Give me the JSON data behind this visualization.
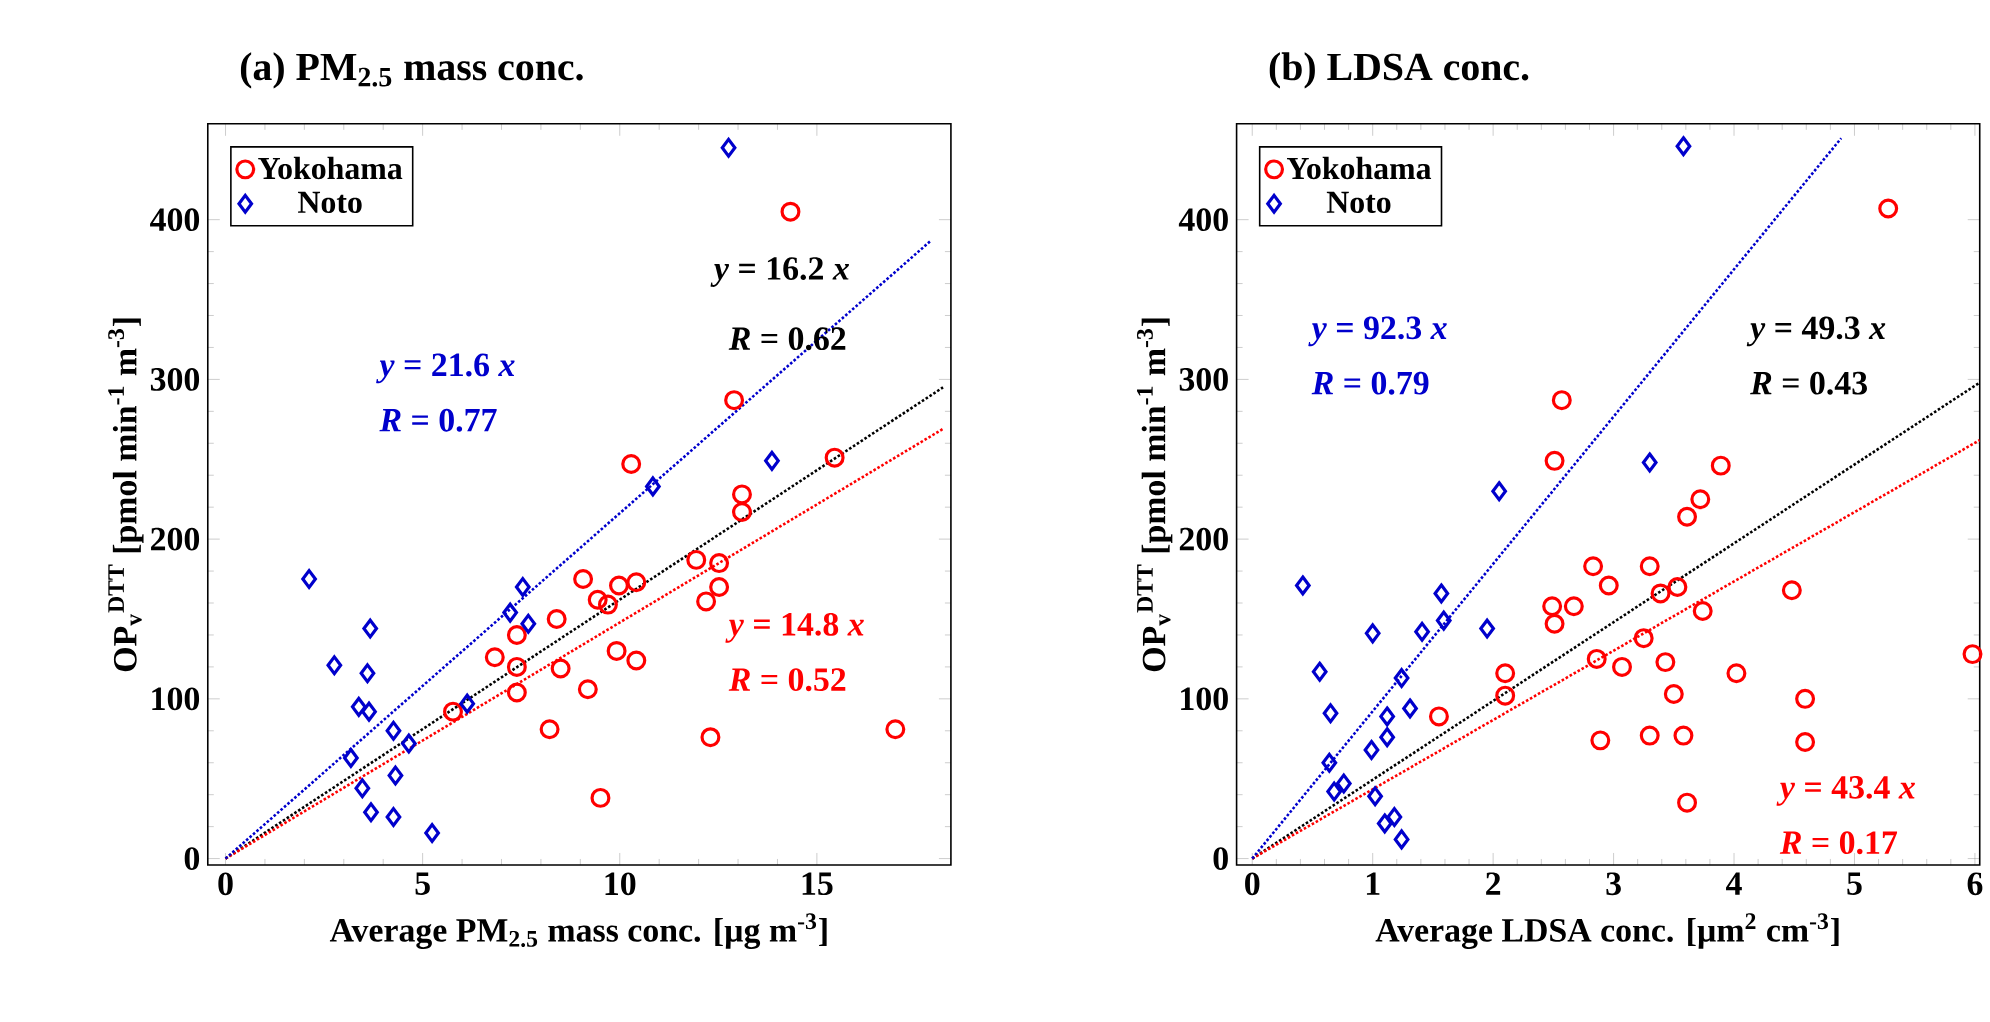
{
  "chart_data": [
    {
      "type": "scatter",
      "title": "(a)  PM$_{2.5}$ mass conc.",
      "xlabel": "Average PM$_{2.5}$ mass conc. [µg m$^{-3}$]",
      "ylabel": "OP$_{v}$$^{DTT}$ [pmol min$^{-1}$ m$^{-3}$]",
      "xlim": [
        -0.45,
        18.4
      ],
      "ylim": [
        -4,
        460
      ],
      "xticks": [
        0,
        5,
        10,
        15
      ],
      "yticks": [
        0,
        100,
        200,
        300,
        400
      ],
      "legend": "top left",
      "series": [
        {
          "name": "Yokohama",
          "color": "#ff0000",
          "marker": "circle",
          "x": [
            14.33,
            12.9,
            10.29,
            13.1,
            13.1,
            15.45,
            9.07,
            9.44,
            9.7,
            9.98,
            10.42,
            11.94,
            12.52,
            12.19,
            12.52,
            8.4,
            7.39,
            6.83,
            7.39,
            7.39,
            8.5,
            9.92,
            10.42,
            9.19,
            5.77,
            8.22,
            12.3,
            16.99,
            9.51
          ],
          "values": [
            405,
            287,
            247,
            228,
            217,
            251,
            175,
            162,
            159,
            171,
            173,
            187,
            185,
            161,
            170,
            150,
            140,
            126,
            120,
            104,
            119,
            130,
            124,
            106,
            92,
            81,
            76,
            81,
            38
          ]
        },
        {
          "name": "Noto",
          "color": "#0000cc",
          "marker": "diamond",
          "x": [
            12.76,
            13.86,
            10.84,
            2.12,
            3.67,
            2.76,
            3.6,
            3.38,
            3.64,
            7.54,
            7.22,
            7.68,
            6.13,
            4.26,
            4.65,
            3.18,
            3.47,
            4.31,
            3.69,
            4.26,
            5.24
          ],
          "values": [
            445,
            249,
            233,
            175,
            144,
            121,
            116,
            95,
            92,
            170,
            154,
            147,
            97,
            80,
            72,
            63,
            44,
            52,
            29,
            26,
            16
          ]
        },
        {
          "type": "line",
          "color": "#000000",
          "marker": "none",
          "line_style": "dotted",
          "x": [
            0,
            18.2
          ],
          "values": [
            0,
            295
          ]
        },
        {
          "type": "line",
          "color": "#ff0000",
          "marker": "none",
          "line_style": "dotted",
          "x": [
            0,
            18.2
          ],
          "values": [
            0,
            269
          ]
        },
        {
          "type": "line",
          "color": "#0000cc",
          "marker": "none",
          "line_style": "dotted",
          "x": [
            0,
            17.9
          ],
          "values": [
            0,
            387
          ]
        }
      ],
      "annotations": [
        "*y* = 16.2 *x*",
        "*R* = 0.62",
        "*y* = 14.8 *x*",
        "*R* = 0.52",
        "*y* = 21.6 *x*",
        "*R* = 0.77"
      ]
    },
    {
      "type": "scatter",
      "title": "(b) LDSA conc.",
      "xlabel": "Average LDSA conc. [µm$^{2}$ cm$^{-3}$]",
      "ylabel": "OP$_{v}$$^{DTT}$ [pmol min$^{-1}$ m$^{-3}$]",
      "xlim": [
        -0.13,
        6.04
      ],
      "ylim": [
        -4,
        460
      ],
      "xticks": [
        0,
        1,
        2,
        3,
        4,
        5,
        6
      ],
      "yticks": [
        0,
        100,
        200,
        300,
        400
      ],
      "legend": "top left",
      "series": [
        {
          "name": "Yokohama",
          "color": "#ff0000",
          "marker": "circle",
          "x": [
            5.28,
            2.57,
            2.51,
            3.89,
            3.72,
            3.61,
            2.83,
            2.96,
            3.3,
            3.53,
            3.39,
            2.49,
            2.67,
            2.51,
            3.74,
            4.48,
            3.25,
            2.86,
            3.07,
            3.43,
            3.5,
            4.02,
            2.1,
            2.1,
            4.59,
            5.98,
            1.55,
            2.89,
            3.3,
            3.58,
            4.59,
            3.61
          ],
          "values": [
            407,
            287,
            249,
            246,
            225,
            214,
            183,
            171,
            183,
            170,
            166,
            158,
            158,
            147,
            155,
            168,
            138,
            125,
            120,
            123,
            103,
            116,
            116,
            102,
            100,
            128,
            89,
            74,
            77,
            77,
            73,
            35
          ]
        },
        {
          "name": "Noto",
          "color": "#0000cc",
          "marker": "diamond",
          "x": [
            3.58,
            3.3,
            2.05,
            0.42,
            1.0,
            0.56,
            1.24,
            0.65,
            1.12,
            1.31,
            1.12,
            0.99,
            1.57,
            1.41,
            1.59,
            1.95,
            0.64,
            0.76,
            0.68,
            1.02,
            1.1,
            1.18,
            1.24
          ],
          "values": [
            446,
            248,
            230,
            171,
            141,
            117,
            113,
            91,
            89,
            94,
            76,
            68,
            166,
            142,
            149,
            144,
            60,
            47,
            42,
            39,
            22,
            26,
            12
          ]
        },
        {
          "type": "line",
          "color": "#000000",
          "marker": "none",
          "line_style": "dotted",
          "x": [
            0,
            6.04
          ],
          "values": [
            0,
            298
          ]
        },
        {
          "type": "line",
          "color": "#ff0000",
          "marker": "none",
          "line_style": "dotted",
          "x": [
            0,
            6.04
          ],
          "values": [
            0,
            262
          ]
        },
        {
          "type": "line",
          "color": "#0000cc",
          "marker": "none",
          "line_style": "dotted",
          "x": [
            0,
            4.89
          ],
          "values": [
            0,
            451
          ]
        }
      ],
      "annotations": [
        "*y* = 49.3 *x*",
        "*R* = 0.43",
        "*y* = 43.4 *x*",
        "*R* = 0.17",
        "*y* = 92.3 *x*",
        "*R* = 0.79"
      ]
    }
  ]
}
